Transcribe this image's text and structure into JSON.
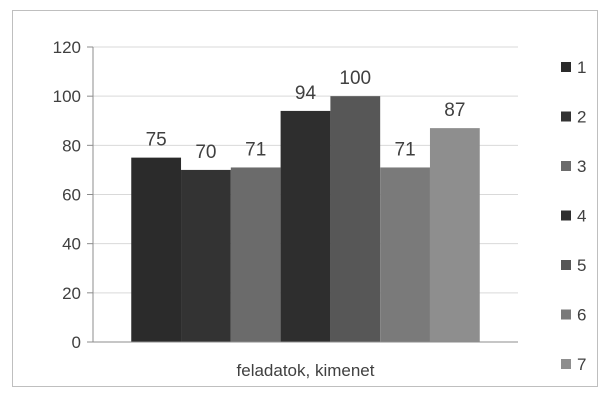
{
  "chart_data": {
    "type": "bar",
    "title": "",
    "xlabel": "",
    "ylabel": "",
    "categories": [
      "feladatok, kimenet"
    ],
    "series": [
      {
        "name": "1",
        "values": [
          75
        ],
        "color": "#2b2b2b"
      },
      {
        "name": "2",
        "values": [
          70
        ],
        "color": "#333333"
      },
      {
        "name": "3",
        "values": [
          71
        ],
        "color": "#6b6b6b"
      },
      {
        "name": "4",
        "values": [
          94
        ],
        "color": "#2e2e2e"
      },
      {
        "name": "5",
        "values": [
          100
        ],
        "color": "#575757"
      },
      {
        "name": "6",
        "values": [
          71
        ],
        "color": "#7a7a7a"
      },
      {
        "name": "7",
        "values": [
          87
        ],
        "color": "#8e8e8e"
      }
    ],
    "ylim": [
      0,
      120
    ],
    "yticks": [
      0,
      20,
      40,
      60,
      80,
      100,
      120
    ],
    "grid": true,
    "legend_position": "right",
    "data_labels": true
  }
}
